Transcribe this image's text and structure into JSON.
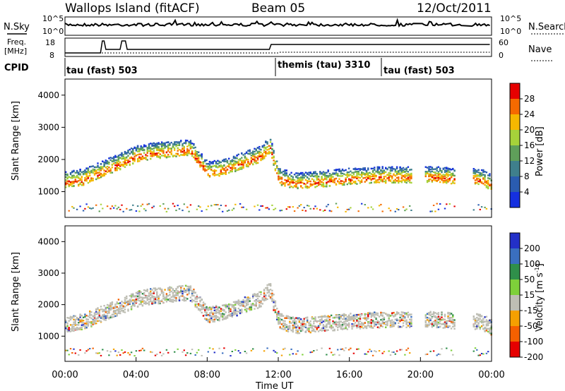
{
  "header": {
    "station": "Wallops Island (fitACF)",
    "beam": "Beam 05",
    "date": "12/Oct/2011"
  },
  "top_panels": {
    "nsky_label": "N.Sky",
    "nsearch_label": "N.Search",
    "noise_ticks_left": [
      "10^5",
      "10^0"
    ],
    "noise_ticks_right": [
      "10^5",
      "10^0"
    ],
    "freq_label_line1": "Freq.",
    "freq_label_line2": "[MHz]",
    "freq_ticks": [
      "18",
      "8"
    ],
    "nave_label": "Nave",
    "nave_ticks": [
      "60",
      "0"
    ],
    "cpid_label": "CPID",
    "cpid_segments": [
      {
        "label": "tau (fast) 503",
        "start_hr": 0
      },
      {
        "label": "themis (tau) 3310",
        "start_hr": 12
      },
      {
        "label": "tau (fast) 503",
        "start_hr": 18
      }
    ]
  },
  "chart_data": [
    {
      "type": "heatmap",
      "panel": "power",
      "ylabel": "Slant Range [km]",
      "y_ticks": [
        "1000",
        "2000",
        "3000",
        "4000"
      ],
      "ylim": [
        200,
        4500
      ],
      "xlim": [
        0,
        24
      ],
      "colorbar_label": "Power [dB]",
      "colorbar_ticks": [
        "4",
        "8",
        "12",
        "16",
        "20",
        "24",
        "28"
      ],
      "colorbar_colors": [
        "#1530e0",
        "#2a5cb0",
        "#3f7f8c",
        "#5f9f5a",
        "#a6d23a",
        "#f5b800",
        "#f56a00",
        "#e60000"
      ],
      "bands": [
        {
          "x": [
            0,
            1,
            2,
            3,
            4,
            5,
            6,
            7,
            8,
            9,
            10,
            11,
            11.5,
            12,
            13,
            14,
            16,
            18,
            19.5
          ],
          "y": [
            1300,
            1380,
            1620,
            1850,
            2100,
            2200,
            2250,
            2300,
            1600,
            1700,
            1900,
            2100,
            2400,
            1400,
            1250,
            1300,
            1400,
            1450,
            1450
          ]
        },
        {
          "x": [
            20.2,
            21,
            22
          ],
          "y": [
            1450,
            1450,
            1400
          ]
        },
        {
          "x": [
            22.9,
            23.5,
            24
          ],
          "y": [
            1400,
            1350,
            1200
          ]
        }
      ]
    },
    {
      "type": "heatmap",
      "panel": "velocity",
      "ylabel": "Slant Range [km]",
      "y_ticks": [
        "1000",
        "2000",
        "3000",
        "4000"
      ],
      "ylim": [
        200,
        4500
      ],
      "xlim": [
        0,
        24
      ],
      "colorbar_label": "Velocity [m s^-1]",
      "colorbar_ticks": [
        "200",
        "100",
        "50",
        "15",
        "-15",
        "-50",
        "-100",
        "-200"
      ],
      "colorbar_colors": [
        "#2330c8",
        "#3a6fc0",
        "#2f8f4a",
        "#7ed03a",
        "#bebeb4",
        "#f5a000",
        "#f56000",
        "#e60000"
      ],
      "x_ticks": [
        "00:00",
        "04:00",
        "08:00",
        "12:00",
        "16:00",
        "20:00",
        "00:00"
      ],
      "xlabel": "Time UT"
    }
  ]
}
